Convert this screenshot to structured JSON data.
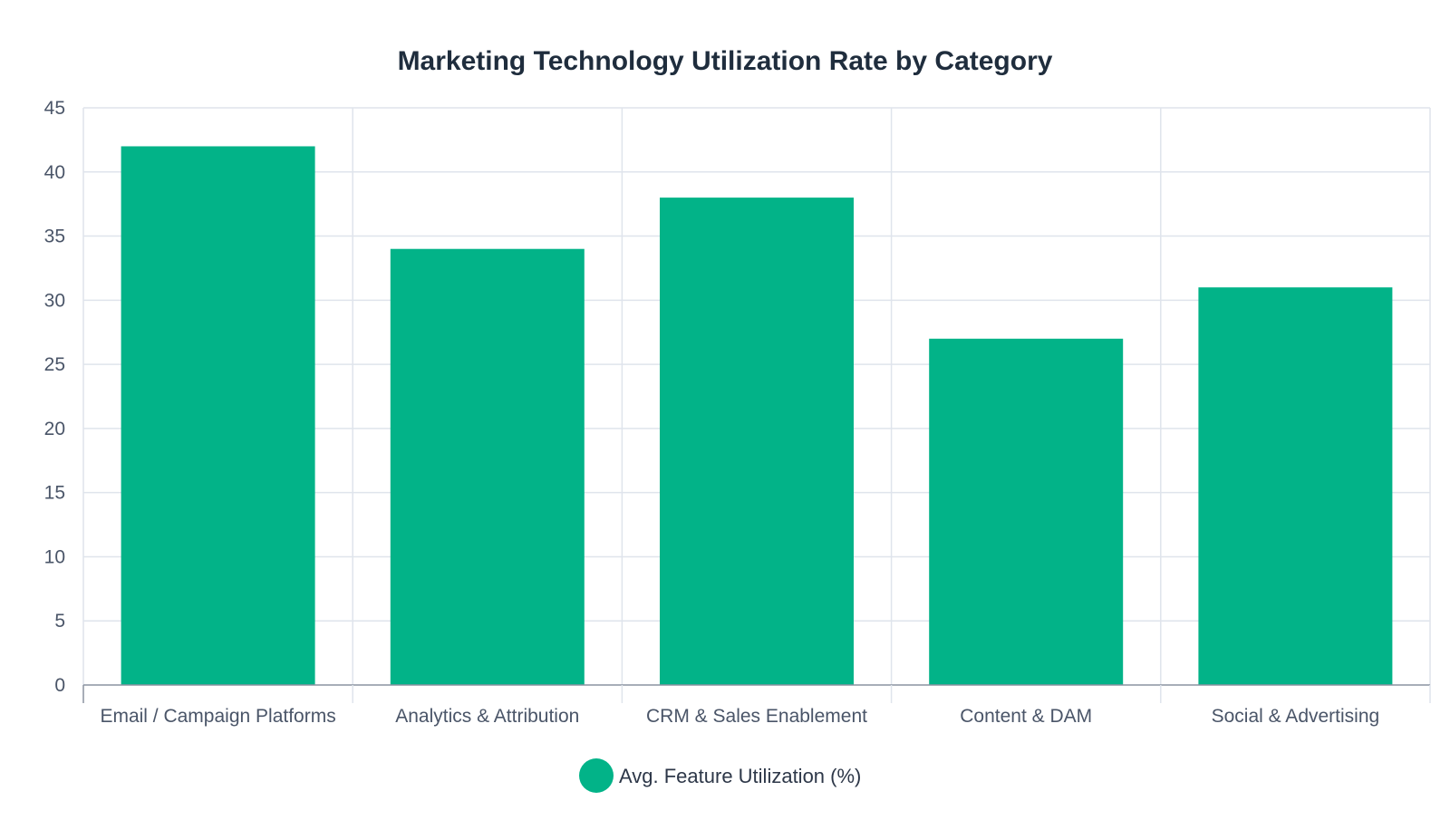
{
  "chart_data": {
    "type": "bar",
    "title": "Marketing Technology Utilization Rate by Category",
    "categories": [
      "Email / Campaign Platforms",
      "Analytics & Attribution",
      "CRM & Sales Enablement",
      "Content & DAM",
      "Social & Advertising"
    ],
    "series": [
      {
        "name": "Avg. Feature Utilization (%)",
        "values": [
          42,
          34,
          38,
          27,
          31
        ],
        "color": "#02b388"
      }
    ],
    "ylim": [
      0,
      45
    ],
    "y_ticks": [
      0,
      5,
      10,
      15,
      20,
      25,
      30,
      35,
      40,
      45
    ],
    "grid": true,
    "legend_position": "bottom-center",
    "xlabel": "",
    "ylabel": ""
  }
}
